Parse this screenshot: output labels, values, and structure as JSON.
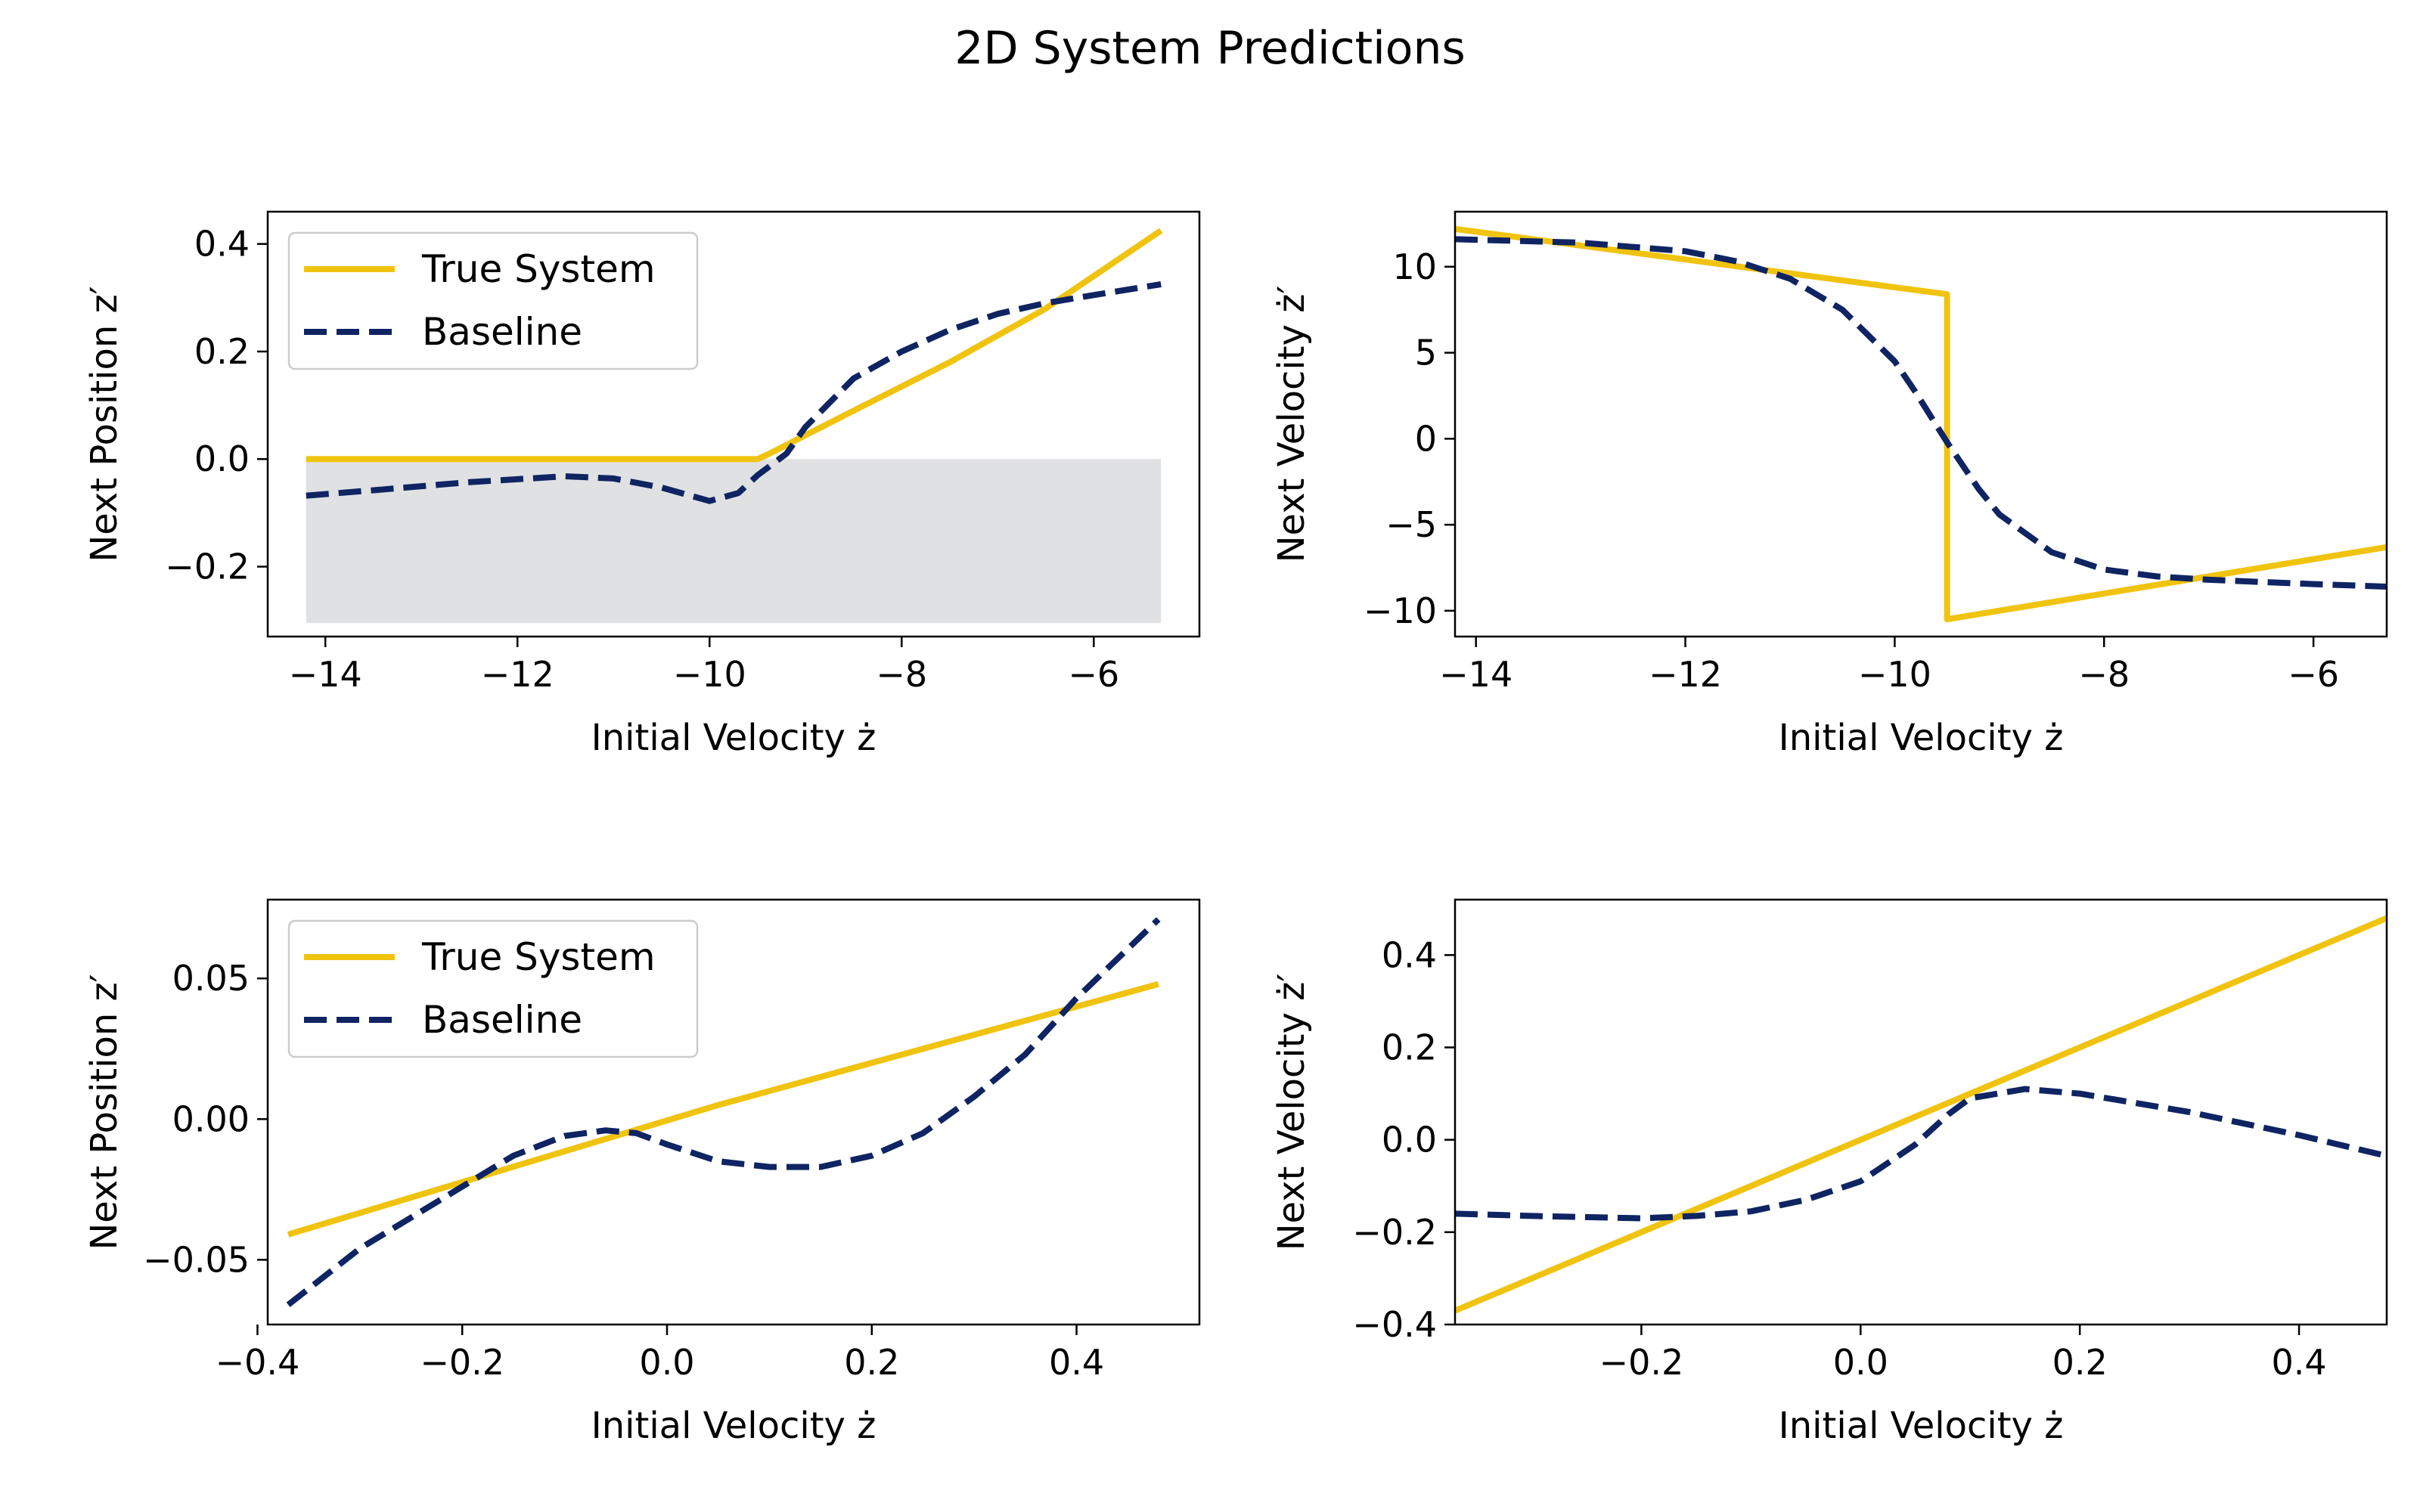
{
  "figure": {
    "title": "2D System Predictions"
  },
  "colors": {
    "true_system": "#f0c30f",
    "baseline": "#0f2462",
    "shade": "#e0e1e3"
  },
  "legend_labels": [
    "True System",
    "Baseline"
  ],
  "chart_data": [
    {
      "type": "line",
      "xlabel": "Initial Velocity ż",
      "ylabel": "Next Position z′",
      "xlim": [
        -14.6,
        -4.9
      ],
      "ylim": [
        -0.33,
        0.46
      ],
      "xticks": [
        -14,
        -12,
        -10,
        -8,
        -6
      ],
      "yticks": [
        -0.2,
        0.0,
        0.2,
        0.4
      ],
      "xtick_labels": [
        "−14",
        "−12",
        "−10",
        "−8",
        "−6"
      ],
      "ytick_labels": [
        "−0.2",
        "0.0",
        "0.2",
        "0.4"
      ],
      "legend": "upper-left",
      "grid": false,
      "shaded_region": {
        "x": [
          -14.2,
          -5.3
        ],
        "y": [
          -0.305,
          0.0
        ]
      },
      "series": [
        {
          "name": "True System",
          "style": "solid",
          "x": [
            -14.2,
            -9.5,
            -9.4,
            -8.5,
            -7.5,
            -6.5,
            -5.3
          ],
          "y": [
            0.0,
            0.0,
            0.008,
            0.09,
            0.18,
            0.28,
            0.425
          ]
        },
        {
          "name": "Baseline",
          "style": "dashed",
          "x": [
            -14.2,
            -13.5,
            -12.5,
            -11.5,
            -11.0,
            -10.5,
            -10.0,
            -9.7,
            -9.5,
            -9.2,
            -9.0,
            -8.5,
            -8.0,
            -7.5,
            -7.0,
            -6.5,
            -6.0,
            -5.3
          ],
          "y": [
            -0.068,
            -0.058,
            -0.043,
            -0.032,
            -0.036,
            -0.053,
            -0.078,
            -0.063,
            -0.03,
            0.01,
            0.06,
            0.15,
            0.2,
            0.24,
            0.27,
            0.29,
            0.305,
            0.325
          ]
        }
      ]
    },
    {
      "type": "line",
      "xlabel": "Initial Velocity ż",
      "ylabel": "Next Velocity ż′",
      "xlim": [
        -14.2,
        -5.3
      ],
      "ylim": [
        -11.5,
        13.2
      ],
      "xticks": [
        -14,
        -12,
        -10,
        -8,
        -6
      ],
      "yticks": [
        -10,
        -5,
        0,
        5,
        10
      ],
      "xtick_labels": [
        "−14",
        "−12",
        "−10",
        "−8",
        "−6"
      ],
      "ytick_labels": [
        "−10",
        "−5",
        "0",
        "5",
        "10"
      ],
      "legend": "none",
      "grid": false,
      "series": [
        {
          "name": "True System",
          "style": "solid",
          "x": [
            -14.2,
            -9.5,
            -9.5,
            -5.3
          ],
          "y": [
            12.2,
            8.4,
            -10.5,
            -6.3
          ]
        },
        {
          "name": "Baseline",
          "style": "dashed",
          "x": [
            -14.2,
            -13.0,
            -12.0,
            -11.5,
            -11.0,
            -10.5,
            -10.0,
            -9.8,
            -9.5,
            -9.2,
            -9.0,
            -8.5,
            -8.0,
            -7.5,
            -7.0,
            -6.0,
            -5.3
          ],
          "y": [
            11.6,
            11.4,
            10.9,
            10.3,
            9.3,
            7.5,
            4.5,
            2.7,
            -0.2,
            -2.9,
            -4.4,
            -6.6,
            -7.6,
            -8.0,
            -8.2,
            -8.45,
            -8.6
          ]
        }
      ]
    },
    {
      "type": "line",
      "xlabel": "Initial Velocity ż",
      "ylabel": "Next Position z′",
      "xlim": [
        -0.39,
        0.52
      ],
      "ylim": [
        -0.073,
        0.078
      ],
      "xticks": [
        -0.4,
        -0.2,
        0.0,
        0.2,
        0.4
      ],
      "yticks": [
        -0.05,
        0.0,
        0.05
      ],
      "xtick_labels": [
        "−0.4",
        "−0.2",
        "0.0",
        "0.2",
        "0.4"
      ],
      "ytick_labels": [
        "−0.05",
        "0.00",
        "0.05"
      ],
      "legend": "upper-left",
      "grid": false,
      "series": [
        {
          "name": "True System",
          "style": "solid",
          "x": [
            -0.37,
            0.05,
            0.06,
            0.48
          ],
          "y": [
            -0.041,
            0.005,
            0.006,
            0.048
          ]
        },
        {
          "name": "Baseline",
          "style": "dashed",
          "x": [
            -0.37,
            -0.3,
            -0.2,
            -0.15,
            -0.1,
            -0.06,
            -0.03,
            0.0,
            0.05,
            0.1,
            0.15,
            0.2,
            0.25,
            0.3,
            0.35,
            0.4,
            0.48
          ],
          "y": [
            -0.066,
            -0.046,
            -0.024,
            -0.013,
            -0.006,
            -0.004,
            -0.005,
            -0.009,
            -0.015,
            -0.017,
            -0.017,
            -0.013,
            -0.005,
            0.008,
            0.023,
            0.043,
            0.071
          ]
        }
      ]
    },
    {
      "type": "line",
      "xlabel": "Initial Velocity ż",
      "ylabel": "Next Velocity ż′",
      "xlim": [
        -0.37,
        0.48
      ],
      "ylim": [
        -0.4,
        0.52
      ],
      "xticks": [
        -0.2,
        0.0,
        0.2,
        0.4
      ],
      "yticks": [
        -0.4,
        -0.2,
        0.0,
        0.2,
        0.4
      ],
      "xtick_labels": [
        "−0.2",
        "0.0",
        "0.2",
        "0.4"
      ],
      "ytick_labels": [
        "−0.4",
        "−0.2",
        "0.0",
        "0.2",
        "0.4"
      ],
      "legend": "none",
      "grid": false,
      "series": [
        {
          "name": "True System",
          "style": "solid",
          "x": [
            -0.37,
            0.48
          ],
          "y": [
            -0.37,
            0.48
          ]
        },
        {
          "name": "Baseline",
          "style": "dashed",
          "x": [
            -0.37,
            -0.3,
            -0.2,
            -0.15,
            -0.1,
            -0.05,
            0.0,
            0.05,
            0.08,
            0.1,
            0.15,
            0.2,
            0.3,
            0.4,
            0.48
          ],
          "y": [
            -0.16,
            -0.165,
            -0.17,
            -0.165,
            -0.155,
            -0.13,
            -0.09,
            -0.01,
            0.055,
            0.09,
            0.11,
            0.1,
            0.06,
            0.01,
            -0.035
          ]
        }
      ]
    }
  ]
}
